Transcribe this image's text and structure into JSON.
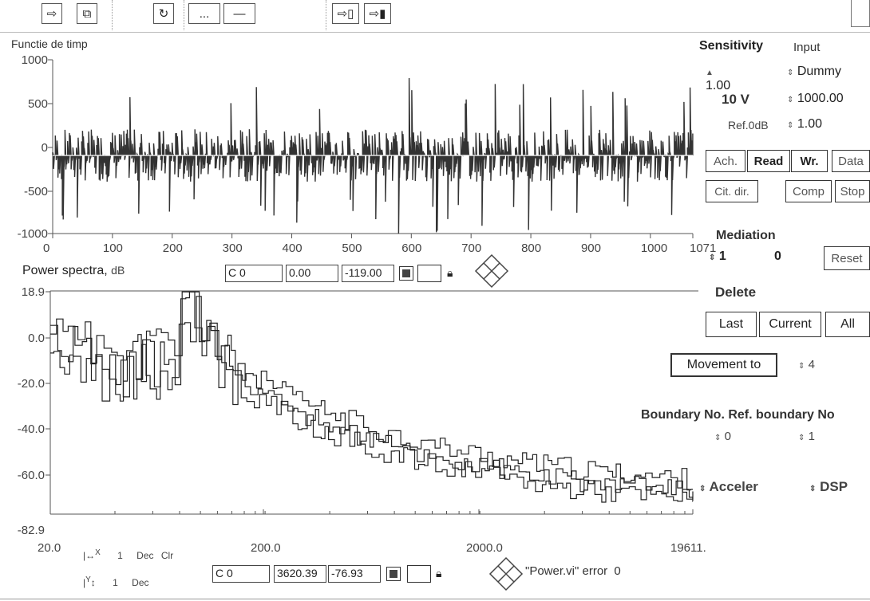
{
  "toolbar": {
    "icons": [
      "step-forward-icon",
      "step-into-icon",
      "refresh-icon",
      "dots-icon",
      "minimize-icon",
      "step-out-icon",
      "step-end-icon"
    ],
    "dots_label": "...",
    "minimize_label": "—"
  },
  "time_chart": {
    "title": "Functie de timp",
    "y_ticks": [
      "1000",
      "500",
      "0",
      "-500",
      "-1000"
    ],
    "x_ticks": [
      "0",
      "100",
      "200",
      "300",
      "400",
      "500",
      "600",
      "700",
      "800",
      "900",
      "1000",
      "1071"
    ]
  },
  "cursor_top": {
    "name": "C 0",
    "x": "0.00",
    "y": "-119.00"
  },
  "spectrum_chart": {
    "title": "Power spectra,",
    "unit": "dB",
    "y_ticks": [
      "18.9",
      "0.0",
      "-20.0",
      "-40.0",
      "-60.0",
      "-82.9"
    ],
    "x_ticks": [
      "20.0",
      "200.0",
      "2000.0",
      "19611."
    ]
  },
  "cursor_bottom": {
    "name": "C 0",
    "x": "3620.39",
    "y": "-76.93"
  },
  "legend": {
    "x_label": "X",
    "y_label": "Y",
    "x_value": "1",
    "y_value": "1",
    "x_mode": "Dec",
    "y_mode": "Dec",
    "clear": "Clr"
  },
  "error": {
    "label": "\"Power.vi\" error",
    "value": "0"
  },
  "panel": {
    "sensitivity_label": "Sensitivity",
    "input_label": "Input",
    "sensitivity_value": "1.00",
    "input_value": "Dummy",
    "range_label": "10 V",
    "range_value": "1000.00",
    "ref_label": "Ref.0dB",
    "ref_value": "1.00",
    "buttons_row1": [
      "Ach.",
      "Read",
      "Wr.",
      "Data"
    ],
    "buttons_row2": [
      "Cit. dir.",
      "Comp",
      "Stop"
    ],
    "mediation_label": "Mediation",
    "mediation_value": "1",
    "mediation_count": "0",
    "reset_label": "Reset",
    "delete_label": "Delete",
    "delete_buttons": [
      "Last",
      "Current",
      "All"
    ],
    "movement_label": "Movement to",
    "movement_value": "4",
    "boundary_label": "Boundary No.",
    "ref_boundary_label": "Ref. boundary No",
    "boundary_value": "0",
    "ref_boundary_value": "1",
    "mode_value": "Acceler",
    "proc_value": "DSP"
  }
}
